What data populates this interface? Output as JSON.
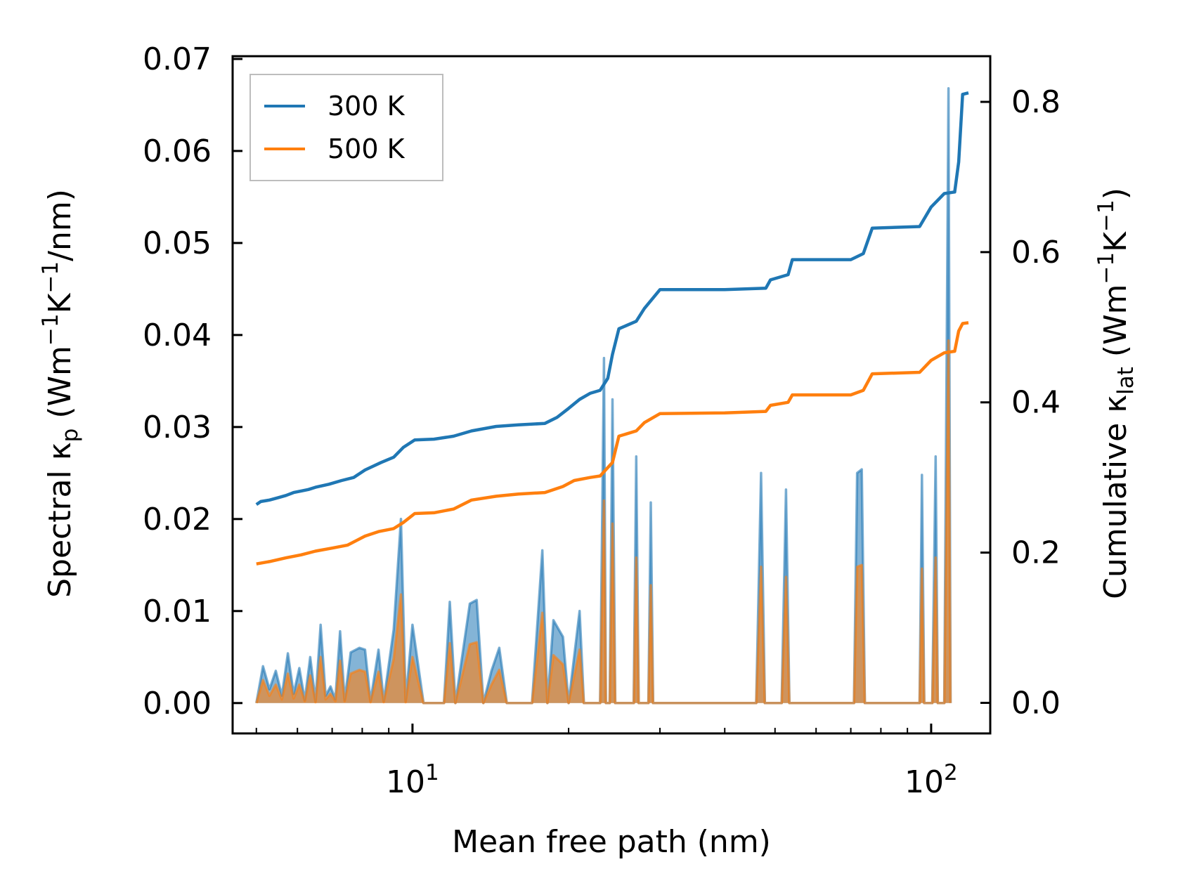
{
  "chart_data": {
    "type": "line",
    "xlabel": "Mean free path (nm)",
    "xscale": "log",
    "xlim": [
      4.5,
      130
    ],
    "x_tick_labels": [
      {
        "value": 10,
        "base": "10",
        "exp": "1"
      },
      {
        "value": 100,
        "base": "10",
        "exp": "2"
      }
    ],
    "y_left": {
      "label_parts": [
        {
          "t": "Spectral κ"
        },
        {
          "t": "p",
          "sub": true
        },
        {
          "t": " (Wm"
        },
        {
          "t": "−1",
          "sup": true
        },
        {
          "t": "K"
        },
        {
          "t": "−1",
          "sup": true
        },
        {
          "t": "/nm)"
        }
      ],
      "ylim": [
        -0.0033,
        0.0703
      ],
      "ticks": [
        "0.00",
        "0.01",
        "0.02",
        "0.03",
        "0.04",
        "0.05",
        "0.06",
        "0.07"
      ],
      "tick_values": [
        0,
        0.01,
        0.02,
        0.03,
        0.04,
        0.05,
        0.06,
        0.07
      ]
    },
    "y_right": {
      "label_parts": [
        {
          "t": "Cumulative κ"
        },
        {
          "t": "lat",
          "sub": true
        },
        {
          "t": " (Wm"
        },
        {
          "t": "−1",
          "sup": true
        },
        {
          "t": "K"
        },
        {
          "t": "−1",
          "sup": true
        },
        {
          "t": ")"
        }
      ],
      "ylim": [
        -0.0407,
        0.8608
      ],
      "ticks": [
        "0.0",
        "0.2",
        "0.4",
        "0.6",
        "0.8"
      ],
      "tick_values": [
        0,
        0.2,
        0.4,
        0.6,
        0.8
      ]
    },
    "legend": {
      "position": "top-left",
      "entries": [
        "300 K",
        "500 K"
      ]
    },
    "series": [
      {
        "name": "300 K",
        "color": "#1f77b4",
        "cumulative": [
          [
            5.0,
            0.264
          ],
          [
            5.1,
            0.268
          ],
          [
            5.3,
            0.27
          ],
          [
            5.5,
            0.273
          ],
          [
            5.7,
            0.276
          ],
          [
            5.9,
            0.28
          ],
          [
            6.1,
            0.282
          ],
          [
            6.3,
            0.284
          ],
          [
            6.5,
            0.287
          ],
          [
            6.9,
            0.291
          ],
          [
            7.3,
            0.296
          ],
          [
            7.7,
            0.3
          ],
          [
            8.1,
            0.31
          ],
          [
            8.7,
            0.32
          ],
          [
            9.2,
            0.327
          ],
          [
            9.6,
            0.34
          ],
          [
            10.1,
            0.35
          ],
          [
            11.0,
            0.351
          ],
          [
            12.0,
            0.355
          ],
          [
            13.0,
            0.362
          ],
          [
            14.5,
            0.368
          ],
          [
            16.0,
            0.37
          ],
          [
            18.0,
            0.372
          ],
          [
            19.0,
            0.38
          ],
          [
            20.0,
            0.392
          ],
          [
            21.0,
            0.404
          ],
          [
            22.0,
            0.412
          ],
          [
            23.0,
            0.416
          ],
          [
            23.8,
            0.432
          ],
          [
            24.3,
            0.464
          ],
          [
            25.0,
            0.498
          ],
          [
            27.0,
            0.508
          ],
          [
            28.0,
            0.525
          ],
          [
            30.0,
            0.55
          ],
          [
            40.0,
            0.55
          ],
          [
            48.0,
            0.552
          ],
          [
            49.0,
            0.563
          ],
          [
            53.0,
            0.57
          ],
          [
            54.0,
            0.59
          ],
          [
            70.0,
            0.59
          ],
          [
            74.0,
            0.598
          ],
          [
            77.0,
            0.632
          ],
          [
            95.0,
            0.634
          ],
          [
            100.0,
            0.66
          ],
          [
            106.0,
            0.678
          ],
          [
            111.0,
            0.68
          ],
          [
            113.0,
            0.72
          ],
          [
            115.0,
            0.81
          ],
          [
            118.0,
            0.812
          ]
        ],
        "spectral": [
          [
            5.0,
            0.0
          ],
          [
            5.15,
            0.004
          ],
          [
            5.3,
            0.0015
          ],
          [
            5.45,
            0.0035
          ],
          [
            5.6,
            0.0008
          ],
          [
            5.75,
            0.0054
          ],
          [
            5.9,
            0.001
          ],
          [
            6.05,
            0.0038
          ],
          [
            6.2,
            0.0003
          ],
          [
            6.35,
            0.005
          ],
          [
            6.5,
            0.0002
          ],
          [
            6.65,
            0.0085
          ],
          [
            6.8,
            0.0008
          ],
          [
            6.95,
            0.0018
          ],
          [
            7.1,
            0.0004
          ],
          [
            7.25,
            0.0078
          ],
          [
            7.4,
            0.0003
          ],
          [
            7.6,
            0.0055
          ],
          [
            7.9,
            0.006
          ],
          [
            8.1,
            0.0058
          ],
          [
            8.3,
            0.0002
          ],
          [
            8.6,
            0.0058
          ],
          [
            8.8,
            0.0002
          ],
          [
            9.2,
            0.008
          ],
          [
            9.5,
            0.02
          ],
          [
            9.7,
            0.0002
          ],
          [
            10.0,
            0.0085
          ],
          [
            10.5,
            0.0
          ],
          [
            11.5,
            0.0
          ],
          [
            11.8,
            0.011
          ],
          [
            12.1,
            0.0
          ],
          [
            12.9,
            0.0108
          ],
          [
            13.3,
            0.0112
          ],
          [
            13.7,
            0.0
          ],
          [
            14.2,
            0.0035
          ],
          [
            14.7,
            0.006
          ],
          [
            15.2,
            0.0
          ],
          [
            17.0,
            0.0
          ],
          [
            17.8,
            0.0166
          ],
          [
            18.2,
            0.0
          ],
          [
            18.7,
            0.009
          ],
          [
            19.5,
            0.0072
          ],
          [
            20.0,
            0.0
          ],
          [
            21.0,
            0.01
          ],
          [
            21.4,
            0.0
          ],
          [
            23.0,
            0.0
          ],
          [
            23.4,
            0.0375
          ],
          [
            23.6,
            0.0
          ],
          [
            24.0,
            0.0
          ],
          [
            24.3,
            0.033
          ],
          [
            24.6,
            0.0
          ],
          [
            26.7,
            0.0
          ],
          [
            27.0,
            0.0268
          ],
          [
            27.3,
            0.0
          ],
          [
            28.5,
            0.0
          ],
          [
            28.8,
            0.0218
          ],
          [
            29.1,
            0.0
          ],
          [
            46.0,
            0.0
          ],
          [
            47.0,
            0.025
          ],
          [
            47.8,
            0.0
          ],
          [
            51.5,
            0.0
          ],
          [
            52.5,
            0.0232
          ],
          [
            53.3,
            0.0
          ],
          [
            71.0,
            0.0
          ],
          [
            72.0,
            0.025
          ],
          [
            73.5,
            0.0254
          ],
          [
            74.5,
            0.0
          ],
          [
            95.0,
            0.0
          ],
          [
            96.0,
            0.0248
          ],
          [
            97.0,
            0.0
          ],
          [
            100.5,
            0.0
          ],
          [
            102.0,
            0.0268
          ],
          [
            103.0,
            0.0
          ],
          [
            106.0,
            0.0
          ],
          [
            108.0,
            0.0668
          ],
          [
            109.0,
            0.0
          ]
        ]
      },
      {
        "name": "500 K",
        "color": "#ff7f0e",
        "cumulative": [
          [
            5.0,
            0.185
          ],
          [
            5.3,
            0.188
          ],
          [
            5.7,
            0.193
          ],
          [
            6.1,
            0.197
          ],
          [
            6.5,
            0.202
          ],
          [
            7.0,
            0.206
          ],
          [
            7.5,
            0.21
          ],
          [
            8.1,
            0.222
          ],
          [
            8.6,
            0.228
          ],
          [
            9.2,
            0.232
          ],
          [
            9.6,
            0.24
          ],
          [
            10.1,
            0.252
          ],
          [
            11.0,
            0.253
          ],
          [
            12.0,
            0.258
          ],
          [
            13.0,
            0.27
          ],
          [
            14.5,
            0.275
          ],
          [
            16.0,
            0.278
          ],
          [
            18.0,
            0.28
          ],
          [
            19.5,
            0.288
          ],
          [
            20.5,
            0.296
          ],
          [
            22.0,
            0.3
          ],
          [
            23.0,
            0.302
          ],
          [
            24.3,
            0.32
          ],
          [
            25.0,
            0.355
          ],
          [
            27.0,
            0.362
          ],
          [
            28.0,
            0.373
          ],
          [
            30.0,
            0.385
          ],
          [
            40.0,
            0.386
          ],
          [
            48.0,
            0.388
          ],
          [
            49.0,
            0.396
          ],
          [
            53.0,
            0.4
          ],
          [
            54.0,
            0.41
          ],
          [
            70.0,
            0.41
          ],
          [
            74.0,
            0.416
          ],
          [
            77.0,
            0.438
          ],
          [
            95.0,
            0.44
          ],
          [
            100.0,
            0.456
          ],
          [
            106.0,
            0.466
          ],
          [
            111.0,
            0.468
          ],
          [
            113.0,
            0.495
          ],
          [
            115.0,
            0.505
          ],
          [
            118.0,
            0.506
          ]
        ],
        "spectral": [
          [
            5.0,
            0.0
          ],
          [
            5.15,
            0.0025
          ],
          [
            5.3,
            0.0008
          ],
          [
            5.45,
            0.002
          ],
          [
            5.6,
            0.0004
          ],
          [
            5.75,
            0.0032
          ],
          [
            5.9,
            0.0005
          ],
          [
            6.05,
            0.002
          ],
          [
            6.2,
            0.0002
          ],
          [
            6.35,
            0.003
          ],
          [
            6.5,
            0.0001
          ],
          [
            6.65,
            0.005
          ],
          [
            6.8,
            0.0004
          ],
          [
            6.95,
            0.001
          ],
          [
            7.1,
            0.0002
          ],
          [
            7.25,
            0.0046
          ],
          [
            7.4,
            0.0002
          ],
          [
            7.6,
            0.0032
          ],
          [
            7.9,
            0.0036
          ],
          [
            8.1,
            0.0034
          ],
          [
            8.3,
            0.0001
          ],
          [
            8.6,
            0.0034
          ],
          [
            8.8,
            0.0001
          ],
          [
            9.2,
            0.0048
          ],
          [
            9.5,
            0.0118
          ],
          [
            9.7,
            0.0001
          ],
          [
            10.0,
            0.005
          ],
          [
            10.5,
            0.0
          ],
          [
            11.5,
            0.0
          ],
          [
            11.8,
            0.0065
          ],
          [
            12.1,
            0.0
          ],
          [
            12.9,
            0.0064
          ],
          [
            13.3,
            0.0066
          ],
          [
            13.7,
            0.0
          ],
          [
            14.2,
            0.002
          ],
          [
            14.7,
            0.0036
          ],
          [
            15.2,
            0.0
          ],
          [
            17.0,
            0.0
          ],
          [
            17.8,
            0.0098
          ],
          [
            18.2,
            0.0
          ],
          [
            18.7,
            0.0052
          ],
          [
            19.5,
            0.0042
          ],
          [
            20.0,
            0.0
          ],
          [
            21.0,
            0.0058
          ],
          [
            21.4,
            0.0
          ],
          [
            23.0,
            0.0
          ],
          [
            23.4,
            0.022
          ],
          [
            23.6,
            0.0
          ],
          [
            24.0,
            0.0
          ],
          [
            24.3,
            0.0195
          ],
          [
            24.6,
            0.0
          ],
          [
            26.7,
            0.0
          ],
          [
            27.0,
            0.0158
          ],
          [
            27.3,
            0.0
          ],
          [
            28.5,
            0.0
          ],
          [
            28.8,
            0.0128
          ],
          [
            29.1,
            0.0
          ],
          [
            46.0,
            0.0
          ],
          [
            47.0,
            0.0148
          ],
          [
            47.8,
            0.0
          ],
          [
            51.5,
            0.0
          ],
          [
            52.5,
            0.0137
          ],
          [
            53.3,
            0.0
          ],
          [
            71.0,
            0.0
          ],
          [
            72.0,
            0.0148
          ],
          [
            73.5,
            0.015
          ],
          [
            74.5,
            0.0
          ],
          [
            95.0,
            0.0
          ],
          [
            96.0,
            0.0146
          ],
          [
            97.0,
            0.0
          ],
          [
            100.5,
            0.0
          ],
          [
            102.0,
            0.0158
          ],
          [
            103.0,
            0.0
          ],
          [
            106.0,
            0.0
          ],
          [
            108.0,
            0.0394
          ],
          [
            109.0,
            0.0
          ]
        ]
      }
    ]
  }
}
